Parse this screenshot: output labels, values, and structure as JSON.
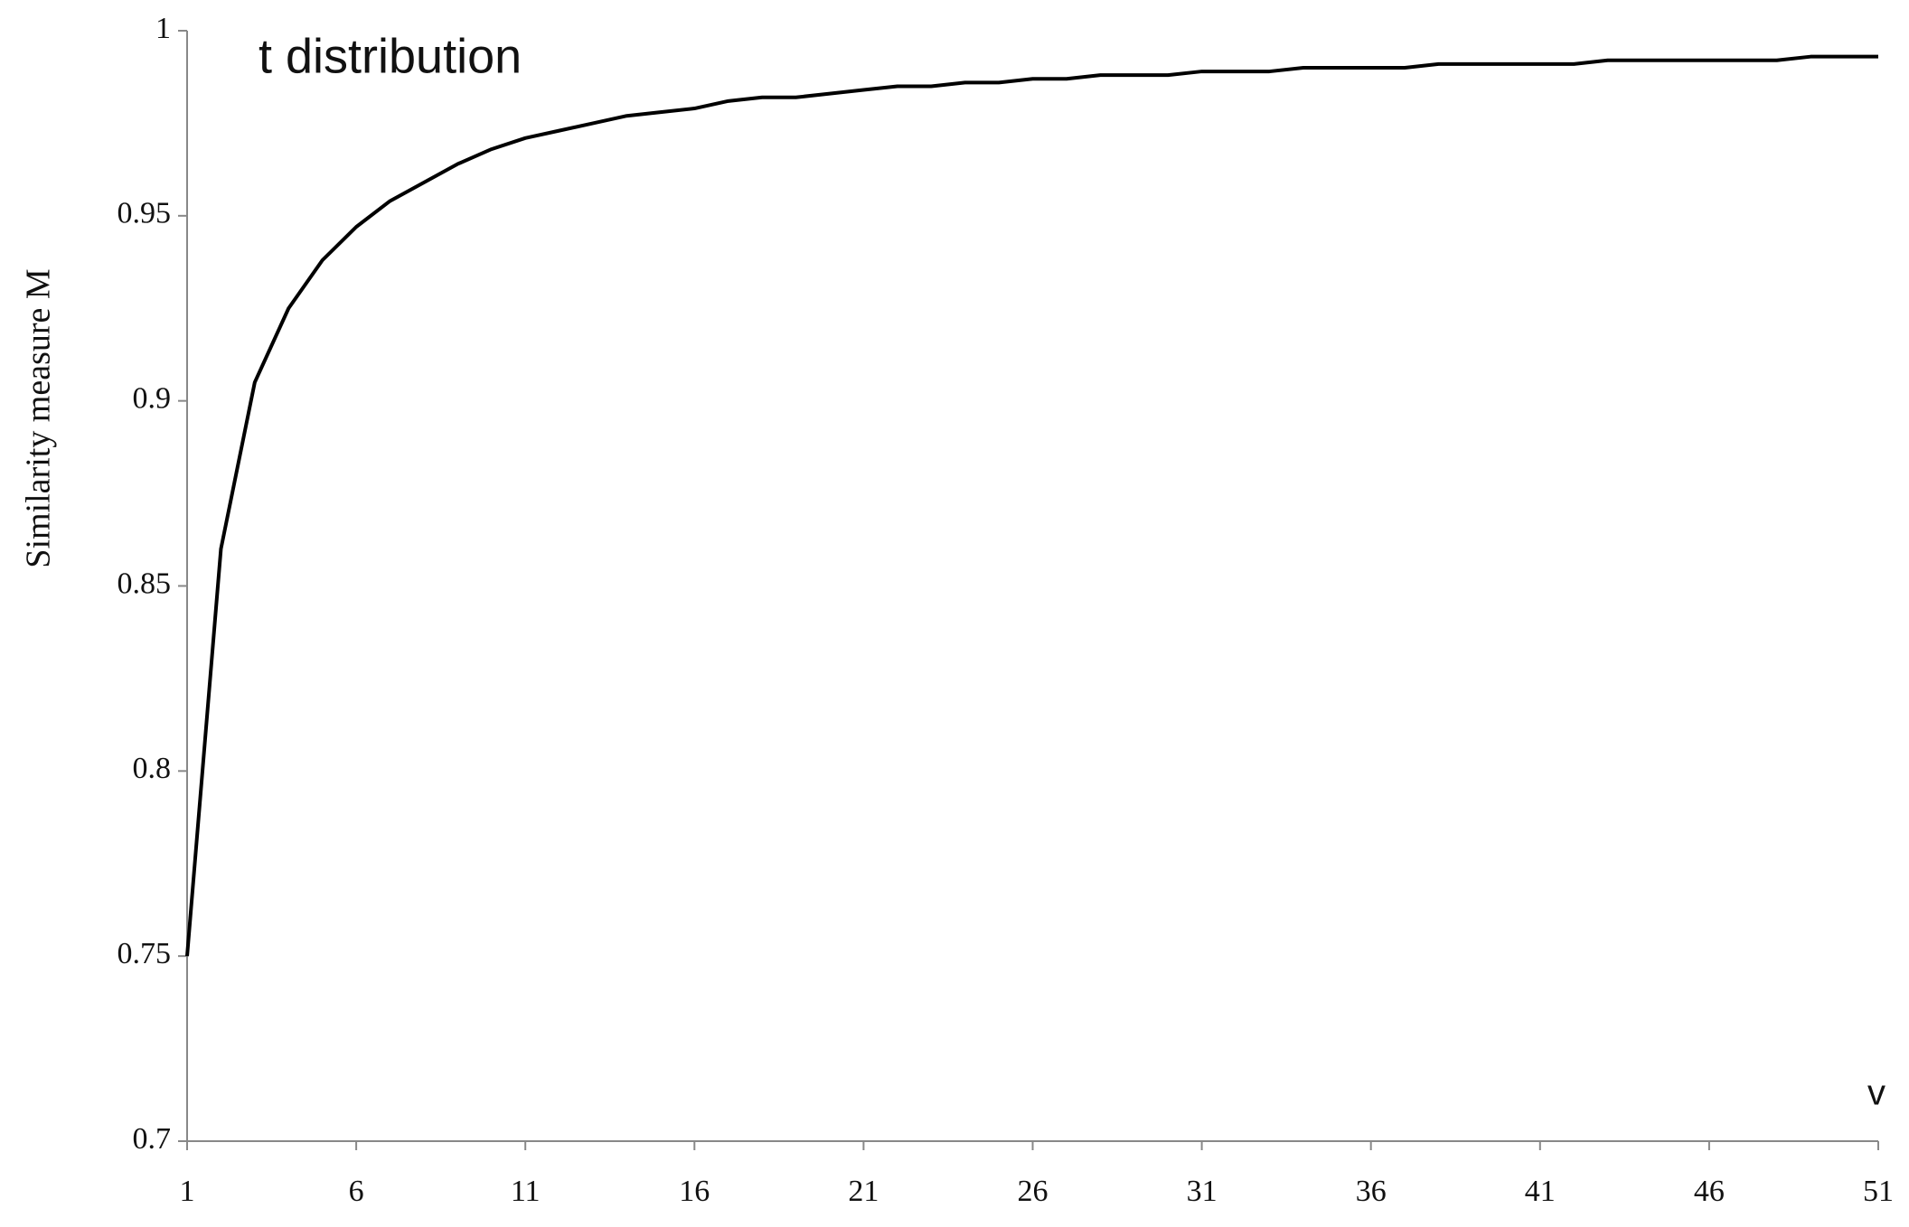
{
  "chart_data": {
    "type": "line",
    "title": "t distribution",
    "y_label": "Similarity measure M",
    "x_label": "v",
    "x": [
      1,
      2,
      3,
      4,
      5,
      6,
      7,
      8,
      9,
      10,
      11,
      12,
      13,
      14,
      15,
      16,
      17,
      18,
      19,
      20,
      21,
      22,
      23,
      24,
      25,
      26,
      27,
      28,
      29,
      30,
      31,
      32,
      33,
      34,
      35,
      36,
      37,
      38,
      39,
      40,
      41,
      42,
      43,
      44,
      45,
      46,
      47,
      48,
      49,
      50,
      51
    ],
    "series": [
      {
        "name": "M",
        "color": "#000000",
        "values": [
          0.75,
          0.86,
          0.905,
          0.925,
          0.938,
          0.947,
          0.954,
          0.959,
          0.964,
          0.968,
          0.971,
          0.973,
          0.975,
          0.977,
          0.978,
          0.979,
          0.981,
          0.982,
          0.982,
          0.983,
          0.984,
          0.985,
          0.985,
          0.986,
          0.986,
          0.987,
          0.987,
          0.988,
          0.988,
          0.988,
          0.989,
          0.989,
          0.989,
          0.99,
          0.99,
          0.99,
          0.99,
          0.991,
          0.991,
          0.991,
          0.991,
          0.991,
          0.992,
          0.992,
          0.992,
          0.992,
          0.992,
          0.992,
          0.993,
          0.993,
          0.993
        ]
      }
    ],
    "xlim": [
      1,
      51
    ],
    "xticks": [
      1,
      6,
      11,
      16,
      21,
      26,
      31,
      36,
      41,
      46,
      51
    ],
    "ylim": [
      0.7,
      1
    ],
    "yticks": [
      0.7,
      0.75,
      0.8,
      0.85,
      0.9,
      0.95,
      1
    ],
    "grid": false
  }
}
